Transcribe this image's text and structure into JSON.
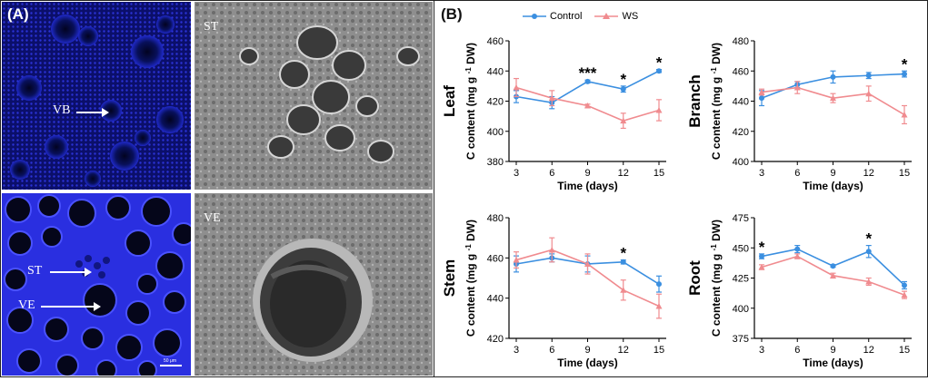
{
  "panel_a": {
    "label": "(A)",
    "tiles": [
      {
        "label": "",
        "arrow_label": "VB"
      },
      {
        "label": "ST",
        "arrow_label": ""
      },
      {
        "label": "",
        "arrow_labels": [
          "ST",
          "VE"
        ],
        "scale_text": "50 μm"
      },
      {
        "label": "VE",
        "arrow_label": ""
      }
    ],
    "colors": {
      "confocal_blue": "#1a1fd0",
      "sem_gray": "#9a9a9a"
    }
  },
  "panel_b": {
    "label": "(B)",
    "legend": [
      {
        "name": "Control",
        "color": "#3b8fe0"
      },
      {
        "name": "WS",
        "color": "#f08b8f"
      }
    ]
  },
  "chart_data": [
    {
      "type": "line",
      "organ": "Leaf",
      "xlabel": "Time (days)",
      "ylabel": "C content (mg g-1 DW)",
      "x": [
        3,
        6,
        9,
        12,
        15
      ],
      "ylim": [
        380,
        460
      ],
      "yticks": [
        380,
        400,
        420,
        440,
        460
      ],
      "series": [
        {
          "name": "Control",
          "values": [
            423,
            419,
            433,
            428,
            440
          ],
          "errors": [
            4,
            4,
            1,
            2,
            1
          ]
        },
        {
          "name": "WS",
          "values": [
            429,
            422,
            417,
            407,
            414
          ],
          "errors": [
            6,
            5,
            1,
            5,
            7
          ]
        }
      ],
      "annotations": [
        {
          "x": 9,
          "text": "***"
        },
        {
          "x": 12,
          "text": "*"
        },
        {
          "x": 15,
          "text": "*"
        }
      ]
    },
    {
      "type": "line",
      "organ": "Branch",
      "xlabel": "Time (days)",
      "ylabel": "C content (mg g-1 DW)",
      "x": [
        3,
        6,
        9,
        12,
        15
      ],
      "ylim": [
        400,
        480
      ],
      "yticks": [
        400,
        420,
        440,
        460,
        480
      ],
      "series": [
        {
          "name": "Control",
          "values": [
            442,
            451,
            456,
            457,
            458
          ],
          "errors": [
            5,
            2,
            4,
            2,
            2
          ]
        },
        {
          "name": "WS",
          "values": [
            446,
            449,
            442,
            445,
            431
          ],
          "errors": [
            2,
            4,
            3,
            5,
            6
          ]
        }
      ],
      "annotations": [
        {
          "x": 15,
          "text": "*"
        }
      ]
    },
    {
      "type": "line",
      "organ": "Stem",
      "xlabel": "Time (days)",
      "ylabel": "C content (mg g-1 DW)",
      "x": [
        3,
        6,
        9,
        12,
        15
      ],
      "ylim": [
        420,
        480
      ],
      "yticks": [
        420,
        440,
        460,
        480
      ],
      "series": [
        {
          "name": "Control",
          "values": [
            457,
            460,
            457,
            458,
            447
          ],
          "errors": [
            4,
            2,
            4,
            1,
            4
          ]
        },
        {
          "name": "WS",
          "values": [
            459,
            464,
            457,
            444,
            436
          ],
          "errors": [
            4,
            6,
            5,
            5,
            6
          ]
        }
      ],
      "annotations": [
        {
          "x": 12,
          "text": "*"
        }
      ]
    },
    {
      "type": "line",
      "organ": "Root",
      "xlabel": "Time (days)",
      "ylabel": "C content (mg g-1 DW)",
      "x": [
        3,
        6,
        9,
        12,
        15
      ],
      "ylim": [
        375,
        475
      ],
      "yticks": [
        375,
        400,
        425,
        450,
        475
      ],
      "series": [
        {
          "name": "Control",
          "values": [
            443,
            449,
            435,
            447,
            419
          ],
          "errors": [
            2,
            3,
            1,
            5,
            3
          ]
        },
        {
          "name": "WS",
          "values": [
            434,
            443,
            427,
            422,
            411
          ],
          "errors": [
            2,
            2,
            2,
            3,
            3
          ]
        }
      ],
      "annotations": [
        {
          "x": 3,
          "text": "*"
        },
        {
          "x": 12,
          "text": "*"
        }
      ]
    }
  ]
}
